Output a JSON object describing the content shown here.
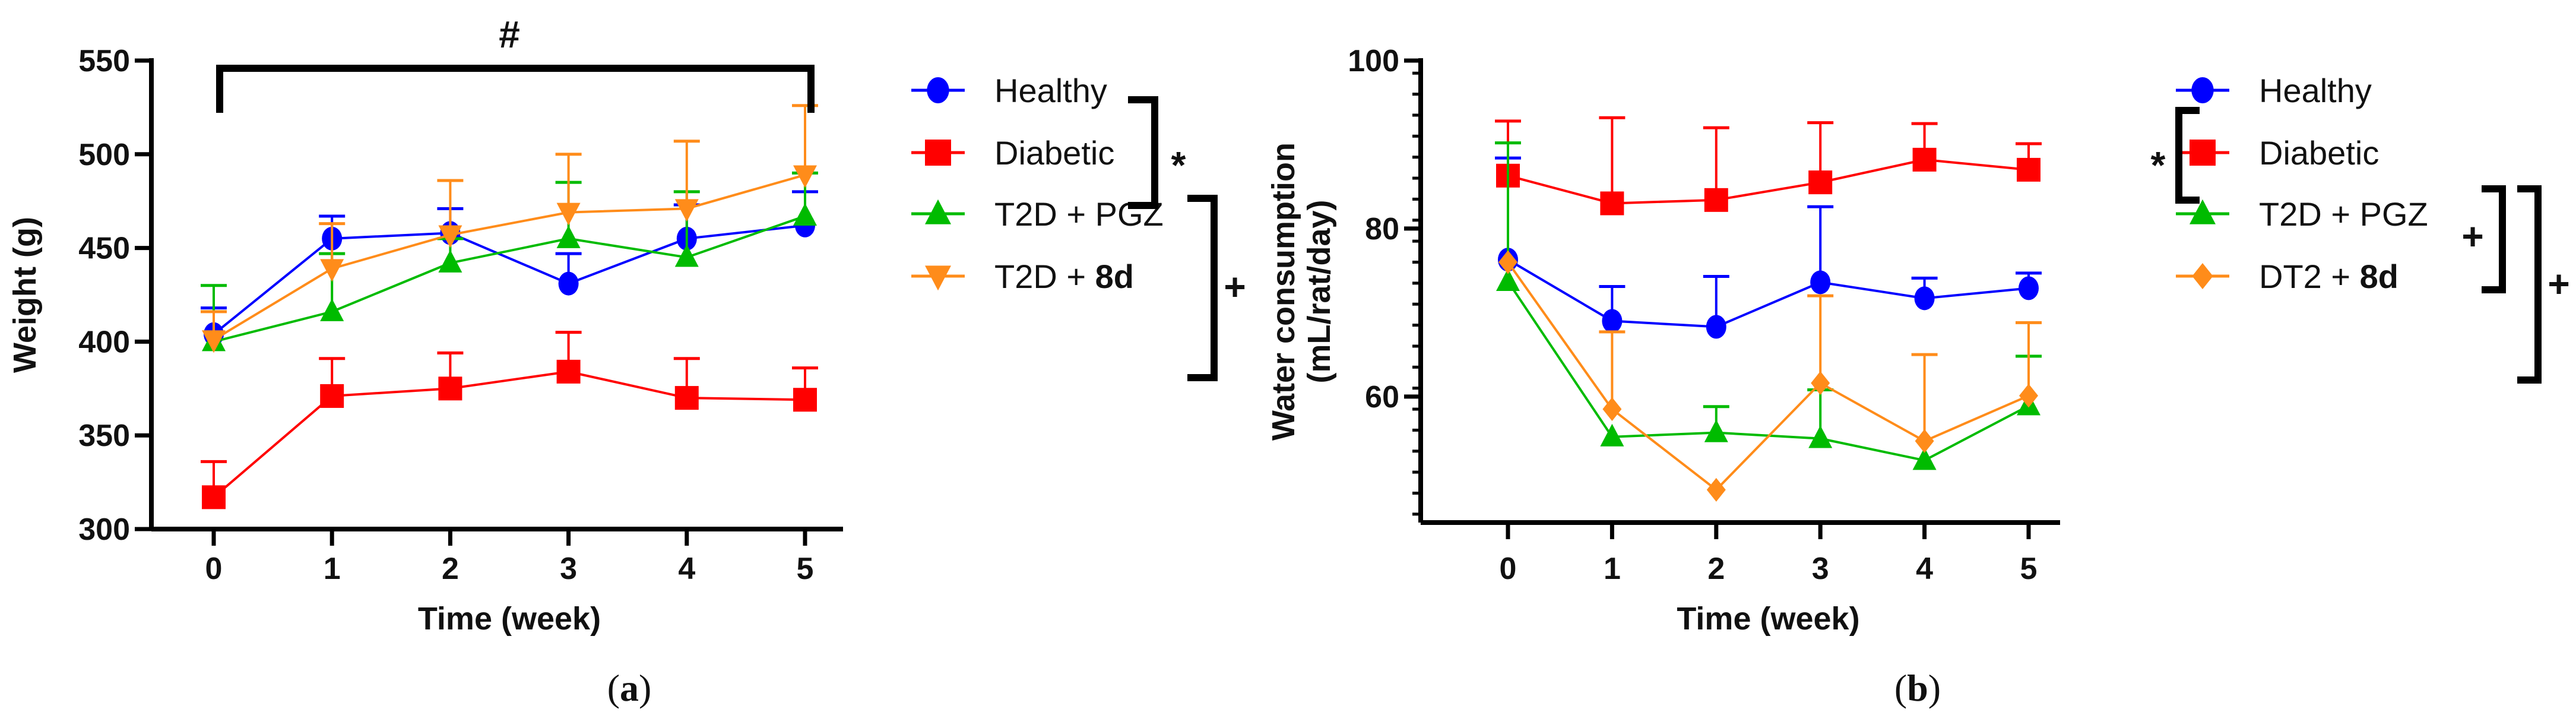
{
  "chart_data": [
    {
      "type": "line",
      "panel_label": "a",
      "xlabel": "Time (week)",
      "ylabel": "Weight (g)",
      "x": [
        0,
        1,
        2,
        3,
        4,
        5
      ],
      "xticks": [
        "0",
        "1",
        "2",
        "3",
        "4",
        "5"
      ],
      "ylim": [
        300,
        550
      ],
      "yticks": [
        "300",
        "350",
        "400",
        "450",
        "500",
        "550"
      ],
      "annotation_top": "#",
      "legend_sig": [
        "*",
        "+"
      ],
      "legend_placement": "right",
      "series": [
        {
          "name": "Healthy",
          "marker": "circle",
          "color": "#0000ff",
          "values": [
            404,
            455,
            458,
            431,
            455,
            462
          ],
          "err_upper": [
            418,
            467,
            471,
            447,
            473,
            480
          ]
        },
        {
          "name": "Diabetic",
          "marker": "square",
          "color": "#ff0000",
          "values": [
            317,
            371,
            375,
            384,
            370,
            369
          ],
          "err_upper": [
            336,
            391,
            394,
            405,
            391,
            386
          ]
        },
        {
          "name": "T2D + PGZ",
          "name_plain": "T2D + ",
          "name_bold": "PGZ",
          "bold": false,
          "marker": "triangle-up",
          "color": "#00bb00",
          "values": [
            400,
            416,
            442,
            455,
            445,
            467
          ],
          "err_upper": [
            430,
            447,
            455,
            485,
            480,
            490
          ]
        },
        {
          "name": "T2D + 8d",
          "name_plain": "T2D + ",
          "name_bold": "8d",
          "bold": true,
          "marker": "triangle-down",
          "color": "#ff8c1a",
          "values": [
            401,
            439,
            457,
            469,
            471,
            489
          ],
          "err_upper": [
            416,
            463,
            486,
            500,
            507,
            526
          ]
        }
      ]
    },
    {
      "type": "line",
      "panel_label": "b",
      "xlabel": "Time (week)",
      "ylabel": "Water consumption",
      "ylabel2": "(mL/rat/day)",
      "x": [
        0,
        1,
        2,
        3,
        4,
        5
      ],
      "xticks": [
        "0",
        "1",
        "2",
        "3",
        "4",
        "5"
      ],
      "ylim": [
        45,
        100
      ],
      "yticks": [
        "60",
        "80",
        "100"
      ],
      "legend_sig": [
        "*",
        "+",
        "+"
      ],
      "legend_placement": "right",
      "series": [
        {
          "name": "Healthy",
          "marker": "circle",
          "color": "#0000ff",
          "values": [
            76.3,
            69.0,
            68.3,
            73.6,
            71.7,
            72.9
          ],
          "err_upper": [
            88.4,
            73.1,
            74.3,
            82.6,
            74.1,
            74.7
          ]
        },
        {
          "name": "Diabetic",
          "marker": "square",
          "color": "#ff0000",
          "values": [
            86.3,
            83.0,
            83.4,
            85.5,
            88.2,
            87.0
          ],
          "err_upper": [
            92.8,
            93.2,
            92.0,
            92.6,
            92.5,
            90.1
          ]
        },
        {
          "name": "T2D + PGZ",
          "marker": "triangle-up",
          "color": "#00bb00",
          "values": [
            73.7,
            55.2,
            55.7,
            55.0,
            52.4,
            58.9
          ],
          "err_upper": [
            90.2,
            55.2,
            58.8,
            60.8,
            52.4,
            64.8
          ]
        },
        {
          "name": "DT2 + 8d",
          "name_plain": "DT2 + ",
          "name_bold": "8d",
          "bold": true,
          "marker": "diamond",
          "color": "#ff8c1a",
          "values": [
            76.0,
            58.5,
            48.9,
            61.6,
            54.7,
            60.1
          ],
          "err_upper": [
            76.0,
            67.7,
            48.9,
            72.0,
            65.0,
            68.8
          ]
        }
      ]
    }
  ]
}
